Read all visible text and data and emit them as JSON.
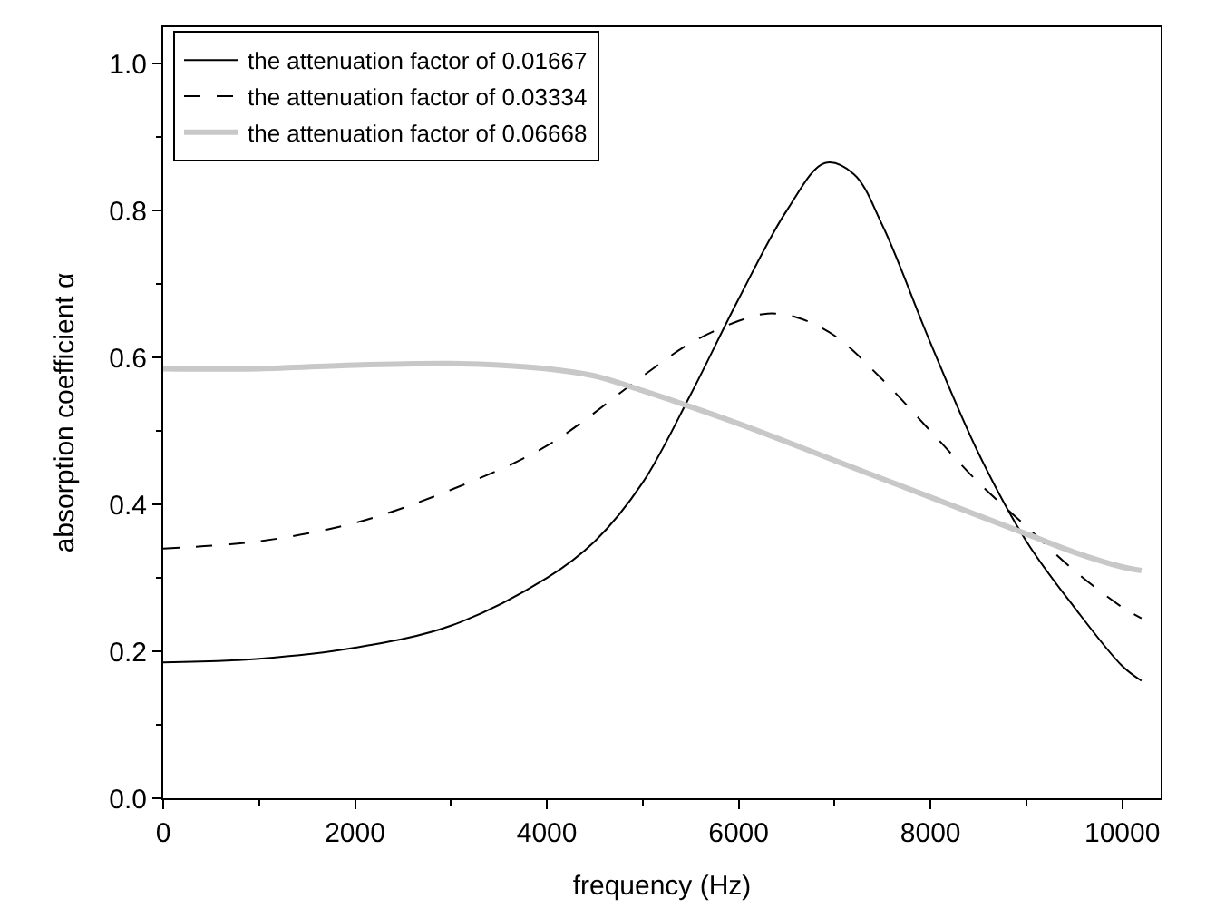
{
  "chart_data": {
    "type": "line",
    "xlabel": "frequency (Hz)",
    "ylabel": "absorption coefficient α",
    "xlim": [
      0,
      10400
    ],
    "xticks": [
      0,
      2000,
      4000,
      6000,
      8000,
      10000
    ],
    "ylim": [
      0,
      1.05
    ],
    "yticks": [
      {
        "value": 0,
        "label": "0.0"
      },
      0.2,
      0.4,
      0.6,
      0.8,
      {
        "value": 1,
        "label": "1.0"
      }
    ],
    "legend": "top left",
    "marker": "none",
    "series": [
      {
        "name": "the attenuation factor of 0.01667",
        "color": "#000000",
        "line_style": "solid",
        "x": [
          0,
          1000,
          2000,
          3000,
          4000,
          4500,
          5000,
          5500,
          6000,
          6500,
          6900,
          7200,
          7500,
          8000,
          8500,
          9000,
          9500,
          10000,
          10200
        ],
        "values": [
          0.185,
          0.19,
          0.205,
          0.235,
          0.3,
          0.35,
          0.43,
          0.55,
          0.68,
          0.8,
          0.865,
          0.85,
          0.78,
          0.62,
          0.47,
          0.35,
          0.26,
          0.18,
          0.16
        ]
      },
      {
        "name": "the attenuation factor of 0.03334",
        "color": "#000000",
        "line_style": "dashed",
        "x": [
          0,
          1000,
          2000,
          3000,
          4000,
          5000,
          5500,
          6000,
          6300,
          6600,
          7000,
          7500,
          8000,
          8500,
          9000,
          9500,
          10000,
          10200
        ],
        "values": [
          0.34,
          0.35,
          0.375,
          0.42,
          0.48,
          0.575,
          0.62,
          0.65,
          0.66,
          0.655,
          0.63,
          0.57,
          0.5,
          0.43,
          0.37,
          0.31,
          0.26,
          0.245
        ]
      },
      {
        "name": "the attenuation factor of 0.06668",
        "color": "#c8c8c8",
        "line_style": "solid",
        "x": [
          0,
          1000,
          2000,
          3000,
          3500,
          4000,
          4500,
          5000,
          6000,
          7000,
          8000,
          9000,
          9500,
          10000,
          10200
        ],
        "values": [
          0.585,
          0.585,
          0.59,
          0.592,
          0.59,
          0.585,
          0.575,
          0.555,
          0.51,
          0.46,
          0.41,
          0.36,
          0.335,
          0.315,
          0.31
        ]
      }
    ]
  }
}
